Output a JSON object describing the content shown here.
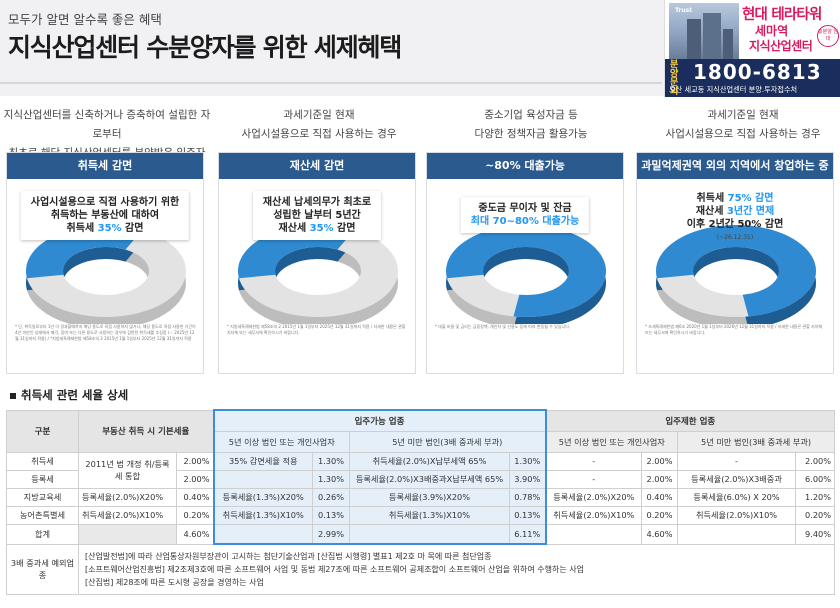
{
  "header": {
    "kicker": "모두가 알면 알수록 좋은 혜택",
    "headline": "지식산업센터 수분양자를 위한 세제혜택"
  },
  "ad": {
    "brand": "Trust",
    "title1": "현대 테라타워",
    "title2": "세마역",
    "title3": "지식산업센터",
    "stamp": "총분양 임대",
    "ask": "분양 문의",
    "phone": "1800-6813",
    "address": "오산 세교동 지식산업센터 분양.투자접수처"
  },
  "columns": [
    {
      "desc1": "지식산업센터를 신축하거나 증축하여 설립한 자로부터",
      "desc2": "최초로 해당 지식산업센터를 분양받은 입주자",
      "head": "취득세 감면",
      "box": [
        "사업시설용으로 직접 사용하기 위한",
        "취득하는 부동산에 대하여",
        "취득세 "
      ],
      "box_hl": "35%",
      "box_tail": " 감면",
      "percent": 35,
      "note": "* 단, 취득일로부터 1년 이 경과할때까지 해당 용도로 직접 사용하지 않거나, 해당 용도로 직접 사용한 기간이 4년 미만인 상태에서 매각, 증여 또는 다른 용도로 사용하는 경우에 감면된 취득세를 추징함 (☞ 2025년 12월 31일까지 적용) / *지방세특례제한법 제58조의 2 2015년 1월 1일부터 2025년 12월 31일까지 적용"
    },
    {
      "desc1": "과세기준일 현재",
      "desc2": "사업시설용으로 직접 사용하는 경우",
      "head": "재산세 감면",
      "box": [
        "재산세 납세의무가 최초로",
        "성립한 날부터 5년간",
        "재산세 "
      ],
      "box_hl": "35%",
      "box_tail": " 감면",
      "percent": 35,
      "note": "* 지방세특례제한법 제58조의 2 2015년 1월 1일부터 2025년 12월 31일까지 적용 / 자세한 내용은 관할 지자체 또는 세무서에 확인하시기 바랍니다."
    },
    {
      "desc1": "중소기업 육성자금 등",
      "desc2": "다양한 정책자금 활용가능",
      "head": "~80% 대출가능",
      "box": [
        "중도금 무이자 및 잔금"
      ],
      "box_hl": "최대 70~80% 대출가능",
      "box_tail": "",
      "percent": 80,
      "note": "* 대출 비율 및 금리는 금융정책, 개인차 및 신용도 등에 따라 변동될 수 있습니다."
    },
    {
      "desc1": "과세기준일 현재",
      "desc2": "사업시설용으로 직접 사용하는 경우",
      "head": "과밀억제권역 외의 지역에서 창업하는 중소기업",
      "box": [
        "취득세 ",
        "재산세 ",
        "이후 2년간 50% 감면"
      ],
      "box_hl": "75% 감면",
      "box_hl2": "3년간 면제",
      "box_date": "(~26.12.31)",
      "percent": 75,
      "note": "* 조세특례제한법 제6조 2020년 1월 1일부터 2026년 12월 31일까지 적용 / 자세한 내용은 관할 지자체 또는 세무서에 확인하시기 바랍니다."
    }
  ],
  "section_title": "취득세 관련 세율 상세",
  "table": {
    "h_gubun": "구분",
    "h_basic": "부동산 취득 시 기본세율",
    "h_avail": "입주가능 업종",
    "h_restr": "입주제한 업종",
    "h_5up": "5년 이상 법인 또는 개인사업자",
    "h_5dn": "5년 미만 법인(3배 중과세 부과)",
    "h_r5up": "5년 이상 법인 또는 개인사업자",
    "h_r5dn": "5년 미만 법인(3배 중과세 부과)",
    "rows": [
      {
        "name": "취득세",
        "b1": "",
        "b2": "2.00%",
        "a1": "35% 감면세율 적용",
        "a2": "1.30%",
        "c1": "취득세율(2.0%)X납부세액 65%",
        "c2": "1.30%",
        "d1": "-",
        "d2": "2.00%",
        "e1": "-",
        "e2": "2.00%"
      },
      {
        "name": "등록세",
        "b1": "",
        "b2": "2.00%",
        "a1": "",
        "a2": "1.30%",
        "c1": "등록세율(2.0%)X3배중과X납부세액 65%",
        "c2": "3.90%",
        "d1": "-",
        "d2": "2.00%",
        "e1": "등록세율(2.0%)X3배중과",
        "e2": "6.00%"
      },
      {
        "name": "지방교육세",
        "b1": "등록세율(2.0%)X20%",
        "b2": "0.40%",
        "a1": "등록세율(1.3%)X20%",
        "a2": "0.26%",
        "c1": "등록세율(3.9%)X20%",
        "c2": "0.78%",
        "d1": "등록세율(2.0%)X20%",
        "d2": "0.40%",
        "e1": "등록세율(6.0%) X 20%",
        "e2": "1.20%"
      },
      {
        "name": "농어촌특별세",
        "b1": "취득세율(2.0%)X10%",
        "b2": "0.20%",
        "a1": "취득세율(1.3%)X10%",
        "a2": "0.13%",
        "c1": "취득세율(1.3%)X10%",
        "c2": "0.13%",
        "d1": "취득세율(2.0%)X10%",
        "d2": "0.20%",
        "e1": "취득세율(2.0%)X10%",
        "e2": "0.20%"
      }
    ],
    "merged_basic": "2011년 법 개정 취/등록세 통합",
    "sum": {
      "name": "합계",
      "b2": "4.60%",
      "a2": "2.99%",
      "c2": "6.11%",
      "d2": "4.60%",
      "e2": "9.40%"
    },
    "notes_name": "3배 중과세 예외업종",
    "notes": [
      "[산업발전법]에 따라 산업통상자원부장관이 고시하는 첨단기술산업과 [산집법 시행령] 별표1 제2호 마 목에 따른 첨단업종",
      "[소프트웨어산업진흥법] 제2조제3호에 따른 소프트웨어 사업 및 동법 제27조에 따른 소프트웨어 공제조합이 소프트웨어 산업을 위하여 수행하는 사업",
      "[산집법] 제28조에 따른 도시형 공장을 경영하는 사업"
    ]
  },
  "colors": {
    "accent": "#2b5a8f",
    "donut": "#2f8ad1",
    "highlight": "#2196f3",
    "ad_pink": "#d81b60",
    "ad_navy": "#1b2d5c"
  }
}
